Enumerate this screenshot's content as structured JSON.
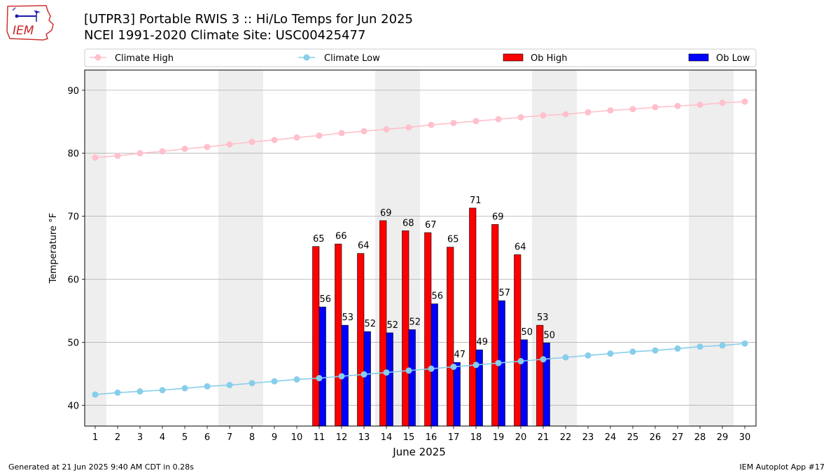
{
  "header": {
    "title_line1": "[UTPR3] Portable RWIS 3 :: Hi/Lo Temps for Jun 2025",
    "title_line2": "NCEI 1991-2020 Climate Site: USC00425477",
    "logo_text": "IEM"
  },
  "footer": {
    "generated": "Generated at 21 Jun 2025 9:40 AM CDT in 0.28s",
    "app": "IEM Autoplot App #17"
  },
  "colors": {
    "climate_high": "#ffc0cb",
    "climate_low": "#87ceeb",
    "ob_high": "#ff0000",
    "ob_low": "#0000ff",
    "weekend_shade": "#eeeeee",
    "grid": "#b0b0b0"
  },
  "chart_data": {
    "type": "bar",
    "xlabel": "June 2025",
    "ylabel": "Temperature °F",
    "ylim": [
      36.7,
      93.2
    ],
    "yticks": [
      40,
      50,
      60,
      70,
      80,
      90
    ],
    "grid": "horizontal",
    "legend_position": "top",
    "x": [
      1,
      2,
      3,
      4,
      5,
      6,
      7,
      8,
      9,
      10,
      11,
      12,
      13,
      14,
      15,
      16,
      17,
      18,
      19,
      20,
      21,
      22,
      23,
      24,
      25,
      26,
      27,
      28,
      29,
      30
    ],
    "weekend_days": [
      1,
      7,
      8,
      14,
      15,
      21,
      22,
      28,
      29
    ],
    "series": [
      {
        "name": "Climate High",
        "kind": "line",
        "values": [
          79.3,
          79.6,
          80.0,
          80.3,
          80.7,
          81.0,
          81.4,
          81.8,
          82.1,
          82.5,
          82.8,
          83.2,
          83.5,
          83.8,
          84.1,
          84.5,
          84.8,
          85.1,
          85.4,
          85.7,
          86.0,
          86.2,
          86.5,
          86.8,
          87.0,
          87.3,
          87.5,
          87.7,
          88.0,
          88.2
        ]
      },
      {
        "name": "Climate Low",
        "kind": "line",
        "values": [
          41.7,
          42.0,
          42.2,
          42.4,
          42.7,
          43.0,
          43.2,
          43.5,
          43.8,
          44.1,
          44.3,
          44.6,
          44.9,
          45.2,
          45.5,
          45.8,
          46.1,
          46.4,
          46.7,
          47.0,
          47.3,
          47.6,
          47.9,
          48.2,
          48.5,
          48.7,
          49.0,
          49.3,
          49.5,
          49.8
        ]
      },
      {
        "name": "Ob High",
        "kind": "bar",
        "values": [
          null,
          null,
          null,
          null,
          null,
          null,
          null,
          null,
          null,
          null,
          65.2,
          65.6,
          64.1,
          69.3,
          67.7,
          67.4,
          65.1,
          71.3,
          68.7,
          63.9,
          52.7,
          null,
          null,
          null,
          null,
          null,
          null,
          null,
          null,
          null
        ],
        "labels": [
          "",
          "",
          "",
          "",
          "",
          "",
          "",
          "",
          "",
          "",
          "65",
          "66",
          "64",
          "69",
          "68",
          "67",
          "65",
          "71",
          "69",
          "64",
          "53",
          "",
          "",
          "",
          "",
          "",
          "",
          "",
          "",
          ""
        ]
      },
      {
        "name": "Ob Low",
        "kind": "bar",
        "values": [
          null,
          null,
          null,
          null,
          null,
          null,
          null,
          null,
          null,
          null,
          55.6,
          52.7,
          51.7,
          51.5,
          52.0,
          56.1,
          46.8,
          48.8,
          56.6,
          50.4,
          49.9,
          null,
          null,
          null,
          null,
          null,
          null,
          null,
          null,
          null
        ],
        "labels": [
          "",
          "",
          "",
          "",
          "",
          "",
          "",
          "",
          "",
          "",
          "56",
          "53",
          "52",
          "52",
          "52",
          "56",
          "47",
          "49",
          "57",
          "50",
          "50",
          "",
          "",
          "",
          "",
          "",
          "",
          "",
          "",
          ""
        ]
      }
    ]
  }
}
